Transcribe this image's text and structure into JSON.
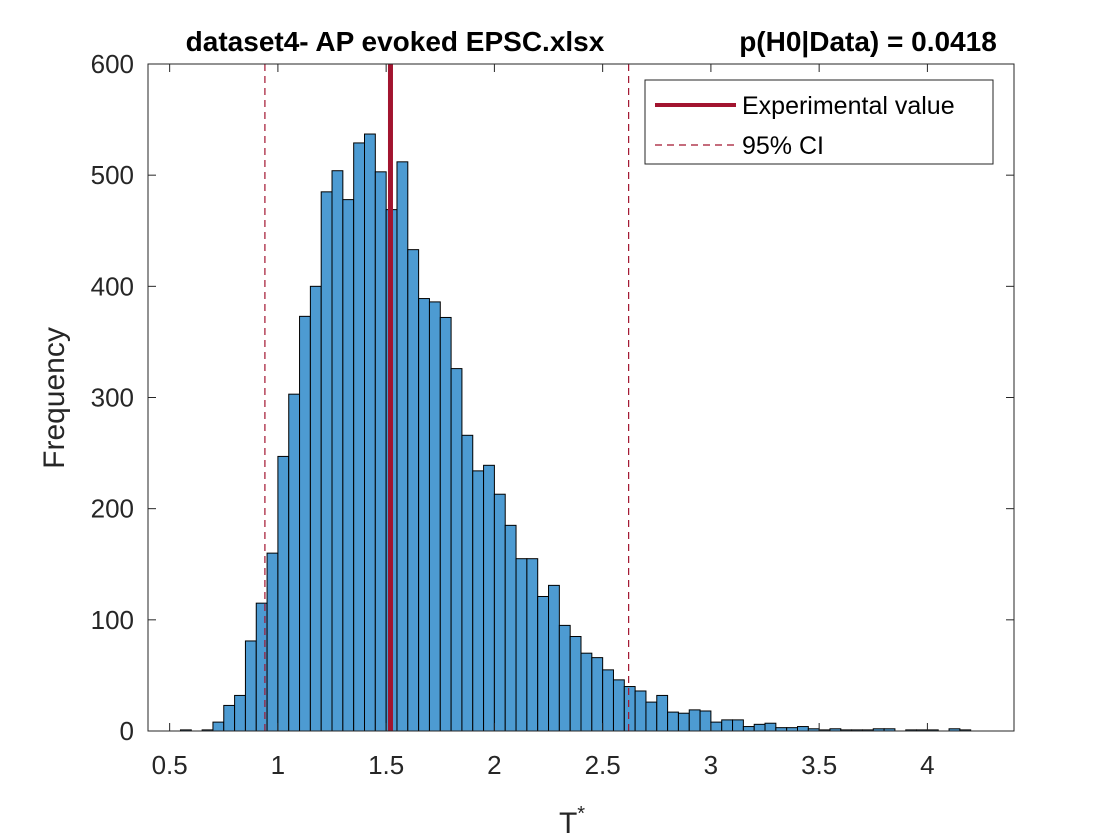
{
  "chart_data": {
    "type": "bar",
    "title": "dataset4- AP evoked EPSC.xlsx",
    "annotation": "p(H0|Data) = 0.0418",
    "xlabel": "T",
    "xlabel_superscript": "*",
    "ylabel": "Frequency",
    "xlim": [
      0.4,
      4.4
    ],
    "ylim": [
      0,
      600
    ],
    "xticks": [
      0.5,
      1,
      1.5,
      2,
      2.5,
      3,
      3.5,
      4
    ],
    "xtick_labels": [
      "0.5",
      "1",
      "1.5",
      "2",
      "2.5",
      "3",
      "3.5",
      "4"
    ],
    "yticks": [
      0,
      100,
      200,
      300,
      400,
      500,
      600
    ],
    "ytick_labels": [
      "0",
      "100",
      "200",
      "300",
      "400",
      "500",
      "600"
    ],
    "grid": false,
    "bin_edges": [
      0.55,
      0.6,
      0.65,
      0.7,
      0.75,
      0.8,
      0.85,
      0.9,
      0.95,
      1.0,
      1.05,
      1.1,
      1.15,
      1.2,
      1.25,
      1.3,
      1.35,
      1.4,
      1.45,
      1.5,
      1.55,
      1.6,
      1.65,
      1.7,
      1.75,
      1.8,
      1.85,
      1.9,
      1.95,
      2.0,
      2.05,
      2.1,
      2.15,
      2.2,
      2.25,
      2.3,
      2.35,
      2.4,
      2.45,
      2.5,
      2.55,
      2.6,
      2.65,
      2.7,
      2.75,
      2.8,
      2.85,
      2.9,
      2.95,
      3.0,
      3.05,
      3.1,
      3.15,
      3.2,
      3.25,
      3.3,
      3.35,
      3.4,
      3.45,
      3.5,
      3.55,
      3.6,
      3.65,
      3.7,
      3.75,
      3.8,
      3.85,
      3.9,
      3.95,
      4.0,
      4.05,
      4.1,
      4.15,
      4.2
    ],
    "counts": [
      1,
      0,
      1,
      8,
      23,
      32,
      81,
      115,
      160,
      247,
      303,
      373,
      400,
      485,
      504,
      478,
      529,
      537,
      503,
      469,
      512,
      433,
      389,
      386,
      372,
      326,
      266,
      234,
      239,
      213,
      185,
      155,
      155,
      121,
      131,
      95,
      85,
      70,
      66,
      55,
      46,
      40,
      36,
      26,
      32,
      17,
      16,
      19,
      18,
      8,
      10,
      10,
      4,
      6,
      7,
      3,
      3,
      4,
      2,
      1,
      2,
      1,
      1,
      1,
      2,
      2,
      0,
      1,
      1,
      1,
      0,
      2,
      1
    ],
    "bar_color": "#4D9BD2",
    "bar_edge_color": "#000000",
    "experimental_value": 1.52,
    "ci_95": [
      0.94,
      2.62
    ],
    "line_color": "#A2142F",
    "legend": {
      "position": "top-right",
      "entries": [
        {
          "label": "Experimental value",
          "style": "solid"
        },
        {
          "label": "95% CI",
          "style": "dashed"
        }
      ]
    }
  }
}
